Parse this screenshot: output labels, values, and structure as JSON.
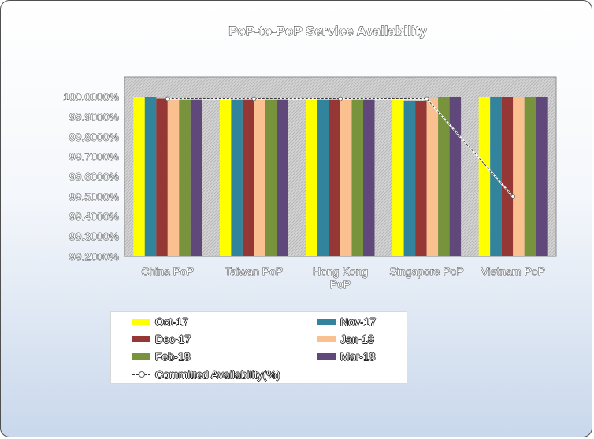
{
  "chart_data": {
    "type": "bar",
    "title": "PoP-to-PoP Service Availability",
    "categories": [
      "China PoP",
      "Taiwan PoP",
      "Hong Kong PoP",
      "Singapore PoP",
      "Vietnam PoP"
    ],
    "category_display": [
      [
        "China PoP"
      ],
      [
        "Taiwan PoP"
      ],
      [
        "Hong Kong",
        "PoP"
      ],
      [
        "Singapore PoP"
      ],
      [
        "Vietnam PoP"
      ]
    ],
    "series": [
      {
        "name": "Oct-17",
        "color": "#ffff00",
        "values": [
          100.0,
          99.99,
          99.99,
          99.99,
          100.0
        ]
      },
      {
        "name": "Nov-17",
        "color": "#31849b",
        "values": [
          100.0,
          99.99,
          99.99,
          99.98,
          100.0
        ]
      },
      {
        "name": "Dec-17",
        "color": "#953735",
        "values": [
          99.99,
          99.99,
          99.99,
          99.98,
          100.0
        ]
      },
      {
        "name": "Jan-18",
        "color": "#fac090",
        "values": [
          99.99,
          99.99,
          99.99,
          99.99,
          100.0
        ]
      },
      {
        "name": "Feb-18",
        "color": "#77933c",
        "values": [
          99.99,
          99.99,
          99.99,
          100.0,
          100.0
        ]
      },
      {
        "name": "Mar-18",
        "color": "#60497a",
        "values": [
          99.99,
          99.99,
          99.99,
          100.0,
          100.0
        ]
      }
    ],
    "line_series": {
      "name": "Committed Availability(%)",
      "values": [
        99.99,
        99.99,
        99.99,
        99.99,
        99.5
      ]
    },
    "y_ticks": [
      "100.0000%",
      "99.9000%",
      "99.8000%",
      "99.7000%",
      "99.6000%",
      "99.5000%",
      "99.4000%",
      "99.3000%",
      "99.2000%"
    ],
    "ylim": [
      99.2,
      100.0
    ],
    "xlabel": "",
    "ylabel": "",
    "legend_position": "bottom",
    "grid": false,
    "plot_area_fill": "#c0c0c0"
  }
}
